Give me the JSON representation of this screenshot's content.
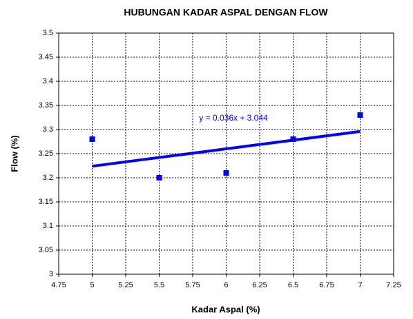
{
  "chart_data": {
    "type": "scatter",
    "title": "HUBUNGAN KADAR ASPAL DENGAN FLOW",
    "x_label": "Kadar Aspal (%)",
    "y_label": "Flow (%)",
    "series": [
      {
        "name": "Flow",
        "color": "#0000ff",
        "x": [
          5,
          5.5,
          6,
          6.5,
          7
        ],
        "values": [
          3.28,
          3.2,
          3.21,
          3.28,
          3.33
        ]
      }
    ],
    "trendline": {
      "slope": 0.036,
      "intercept": 3.044,
      "label": "y = 0.036x + 3.044",
      "color": "#0000ff"
    },
    "xlim": [
      4.75,
      7.25
    ],
    "xticks": [
      4.75,
      5,
      5.25,
      5.5,
      5.75,
      6,
      6.25,
      6.5,
      6.75,
      7,
      7.25
    ],
    "ylim": [
      3,
      3.5
    ],
    "yticks": [
      3,
      3.05,
      3.1,
      3.15,
      3.2,
      3.25,
      3.3,
      3.35,
      3.4,
      3.45,
      3.5
    ],
    "grid": true
  }
}
